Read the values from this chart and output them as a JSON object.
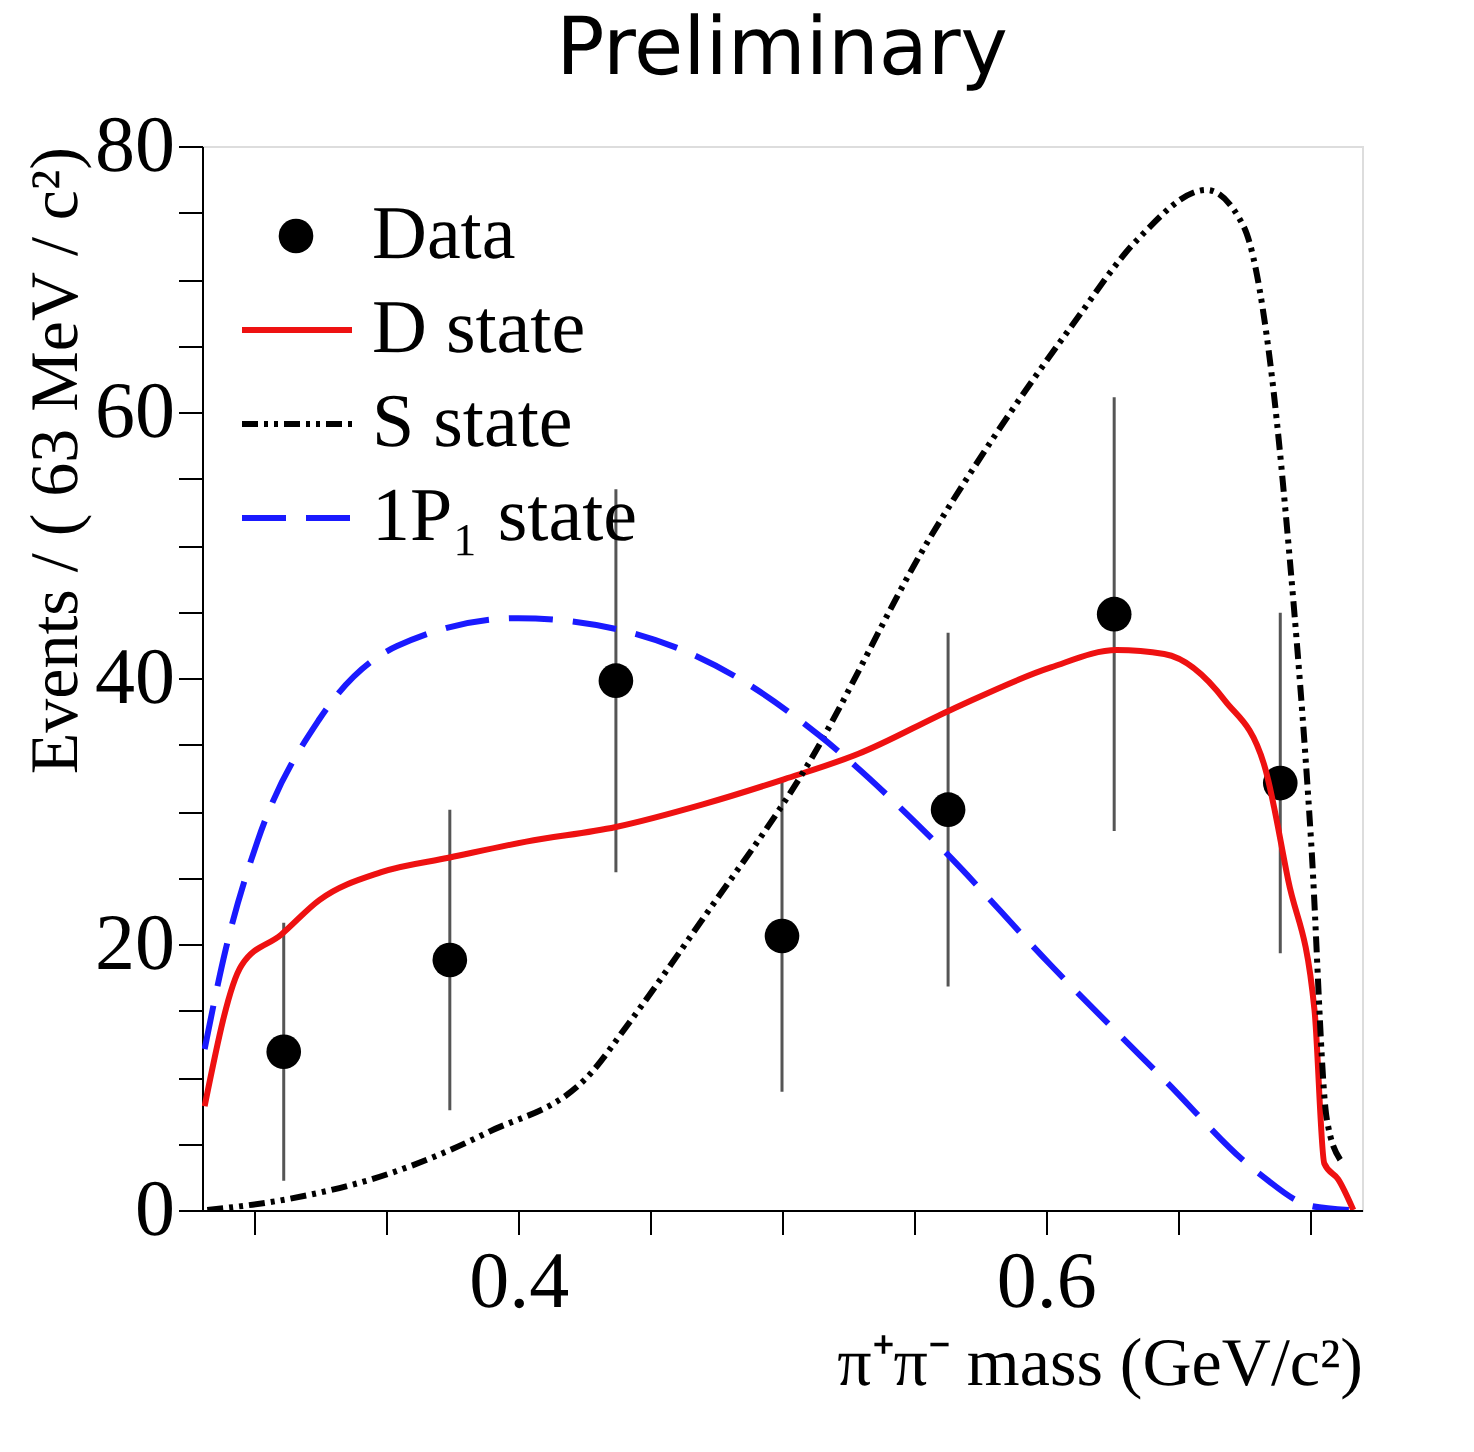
{
  "chart_data": {
    "type": "scatter",
    "title": "Preliminary",
    "xlabel": "π⁺π⁻ mass (GeV/c²)",
    "ylabel": "Events / ( 63 MeV / c²)",
    "xlim": [
      0.28,
      0.72
    ],
    "ylim": [
      0,
      80
    ],
    "xticks": [
      {
        "value": 0.3,
        "label": null
      },
      {
        "value": 0.35,
        "label": null
      },
      0.4,
      {
        "value": 0.45,
        "label": null
      },
      {
        "value": 0.5,
        "label": null
      },
      {
        "value": 0.55,
        "label": null
      },
      0.6,
      {
        "value": 0.65,
        "label": null
      },
      {
        "value": 0.7,
        "label": null
      }
    ],
    "yticks": [
      0,
      {
        "value": 5,
        "label": null
      },
      {
        "value": 10,
        "label": null
      },
      {
        "value": 15,
        "label": null
      },
      20,
      {
        "value": 25,
        "label": null
      },
      {
        "value": 30,
        "label": null
      },
      {
        "value": 35,
        "label": null
      },
      40,
      {
        "value": 45,
        "label": null
      },
      {
        "value": 50,
        "label": null
      },
      {
        "value": 55,
        "label": null
      },
      60,
      {
        "value": 65,
        "label": null
      },
      {
        "value": 70,
        "label": null
      },
      {
        "value": 75,
        "label": null
      },
      80
    ],
    "grid": false,
    "legend": "top left",
    "series": [
      {
        "name": "Data",
        "marker": "circle",
        "color": "#000000",
        "x": [
          0.311,
          0.374,
          0.437,
          0.5,
          0.563,
          0.626,
          0.689
        ],
        "values": [
          11.9,
          18.8,
          39.8,
          20.6,
          30.1,
          44.8,
          32.1
        ],
        "errors": [
          9.7,
          11.3,
          14.4,
          11.7,
          13.3,
          16.3,
          12.8
        ]
      },
      {
        "name": "D state",
        "type": "line",
        "line_style": "solid",
        "color": "#ee1111",
        "x": [
          0.281,
          0.295,
          0.31,
          0.3245,
          0.348,
          0.374,
          0.403,
          0.437,
          0.47,
          0.501,
          0.529,
          0.564,
          0.602,
          0.627,
          0.645,
          0.668,
          0.683,
          0.692,
          0.702,
          0.7057,
          0.711,
          0.7167
        ],
        "values": [
          7.8,
          18.4,
          20.7,
          23.3,
          25.4,
          26.5,
          27.7,
          28.8,
          30.5,
          32.4,
          34.3,
          37.6,
          40.8,
          42.1,
          41.8,
          38.3,
          33.4,
          24.8,
          15.0,
          3.5,
          2.3,
          0
        ]
      },
      {
        "name": "S state",
        "type": "line",
        "line_style": "dotted",
        "color": "#000000",
        "x": [
          0.282,
          0.312,
          0.352,
          0.388,
          0.428,
          0.441,
          0.47,
          0.508,
          0.556,
          0.58,
          0.61,
          0.635,
          0.661,
          0.675,
          0.685,
          0.692,
          0.7007,
          0.7066,
          0.712
        ],
        "values": [
          0,
          0.8,
          2.8,
          5.8,
          10.4,
          13.8,
          21.9,
          32.9,
          50.5,
          58,
          66.5,
          73,
          76.7,
          74,
          64,
          50.3,
          27.7,
          6.9,
          3.7
        ]
      },
      {
        "name": "1P₁ state",
        "type": "line",
        "line_style": "dashed",
        "color": "#1a1aff",
        "x": [
          0.281,
          0.289,
          0.301,
          0.3245,
          0.354,
          0.4,
          0.441,
          0.485,
          0.514,
          0.558,
          0.602,
          0.645,
          0.68,
          0.7007,
          0.715
        ],
        "values": [
          12.1,
          19.6,
          27.7,
          36.9,
          42.4,
          44.5,
          43.5,
          39.8,
          35.7,
          27.7,
          18.4,
          9.8,
          2.9,
          0.3,
          0
        ]
      }
    ]
  }
}
